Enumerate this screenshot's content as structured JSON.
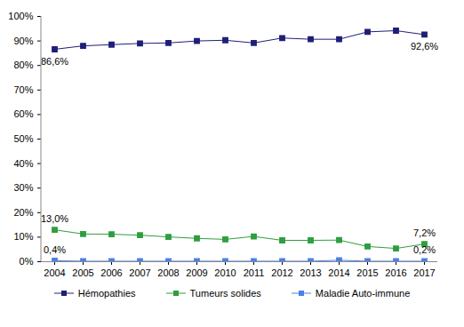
{
  "chart_data": {
    "type": "line",
    "categories": [
      "2004",
      "2005",
      "2006",
      "2007",
      "2008",
      "2009",
      "2010",
      "2011",
      "2012",
      "2013",
      "2014",
      "2015",
      "2016",
      "2017"
    ],
    "series": [
      {
        "name": "Hémopathies",
        "color": "#1f1f78",
        "marker": "square",
        "values": [
          86.6,
          88.0,
          88.5,
          89.0,
          89.2,
          90.0,
          90.3,
          89.2,
          91.2,
          90.7,
          90.7,
          93.7,
          94.2,
          92.6
        ],
        "value_labels": [
          "86,6%",
          null,
          null,
          null,
          null,
          null,
          null,
          null,
          null,
          null,
          null,
          null,
          null,
          "92,6%"
        ]
      },
      {
        "name": "Tumeurs solides",
        "color": "#2e9e3e",
        "marker": "square",
        "values": [
          13.0,
          11.3,
          11.2,
          10.8,
          10.1,
          9.5,
          9.1,
          10.3,
          8.7,
          8.7,
          8.8,
          6.2,
          5.4,
          7.2
        ],
        "value_labels": [
          "13,0%",
          null,
          null,
          null,
          null,
          null,
          null,
          null,
          null,
          null,
          null,
          null,
          null,
          "7,2%"
        ]
      },
      {
        "name": "Maladie Auto-immune",
        "color": "#4c80e8",
        "marker": "square",
        "values": [
          0.4,
          0.2,
          0.2,
          0.2,
          0.2,
          0.2,
          0.2,
          0.2,
          0.2,
          0.2,
          0.6,
          0.2,
          0.2,
          0.2
        ],
        "value_labels": [
          "0,4%",
          null,
          null,
          null,
          null,
          null,
          null,
          null,
          null,
          null,
          null,
          null,
          null,
          "0,2%"
        ]
      }
    ],
    "ylim": [
      0,
      100
    ],
    "yticks": [
      {
        "value": 0,
        "label": "0%"
      },
      {
        "value": 10,
        "label": "10%"
      },
      {
        "value": 20,
        "label": "20%"
      },
      {
        "value": 30,
        "label": "30%"
      },
      {
        "value": 40,
        "label": "40%"
      },
      {
        "value": 50,
        "label": "50%"
      },
      {
        "value": 60,
        "label": "60%"
      },
      {
        "value": 70,
        "label": "70%"
      },
      {
        "value": 80,
        "label": "80%"
      },
      {
        "value": 90,
        "label": "90%"
      },
      {
        "value": 100,
        "label": "100%"
      }
    ],
    "grid": false,
    "legend": "bottom"
  }
}
